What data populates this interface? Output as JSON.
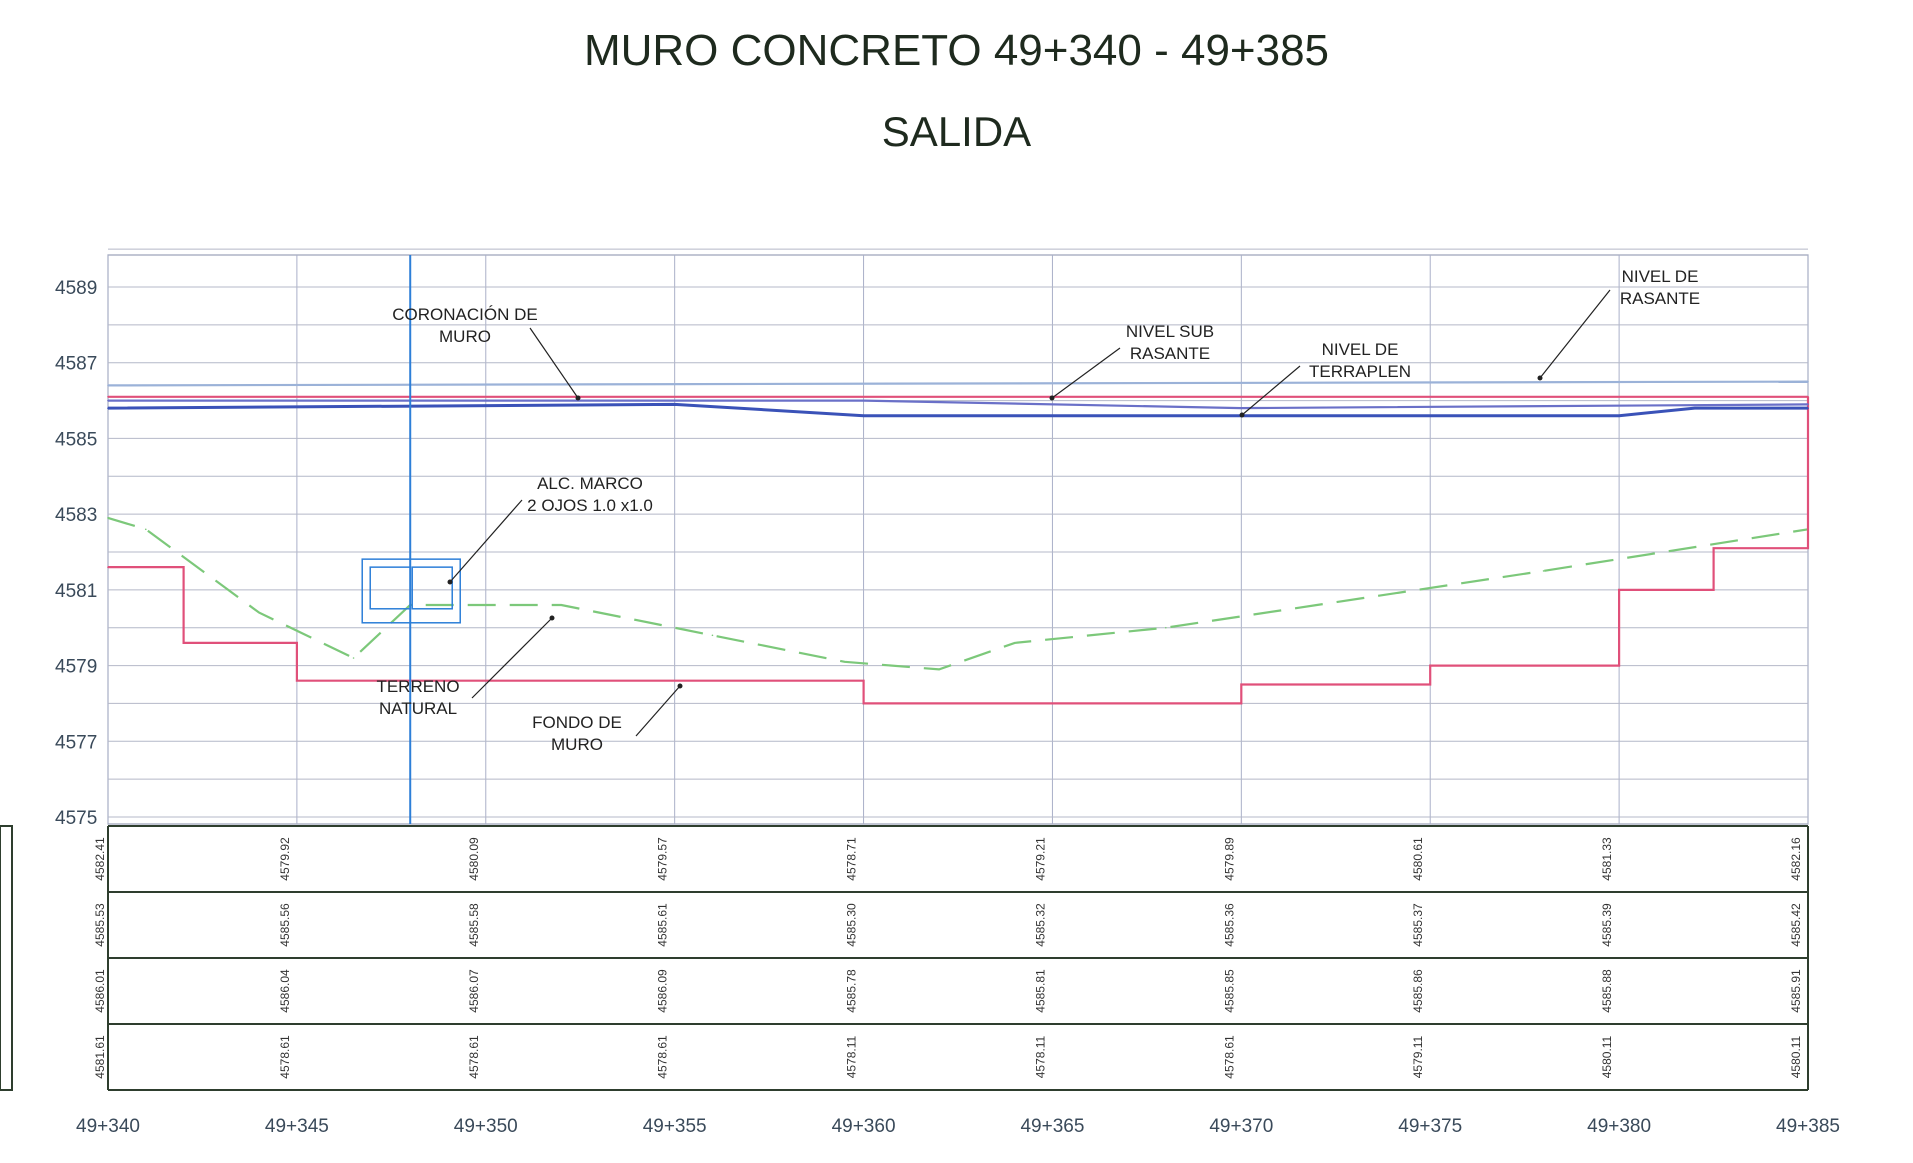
{
  "chart_data": {
    "type": "line",
    "title": "MURO CONCRETO 49+340 - 49+385",
    "subtitle": "SALIDA",
    "x_ticks": [
      "49+340",
      "49+345",
      "49+350",
      "49+355",
      "49+360",
      "49+365",
      "49+370",
      "49+375",
      "49+380",
      "49+385"
    ],
    "y_ticks": [
      4589,
      4587,
      4585,
      4583,
      4581,
      4579,
      4577,
      4575
    ],
    "xlim": [
      49340,
      49385
    ],
    "ylim": [
      4575,
      4590.5
    ],
    "grid": true,
    "annotations": [
      {
        "lines": [
          "CORONACIÓN DE",
          "MURO"
        ]
      },
      {
        "lines": [
          "NIVEL SUB",
          "RASANTE"
        ]
      },
      {
        "lines": [
          "NIVEL DE",
          "TERRAPLEN"
        ]
      },
      {
        "lines": [
          "NIVEL DE",
          "RASANTE"
        ]
      },
      {
        "lines": [
          "ALC. MARCO",
          "2 OJOS 1.0 x1.0"
        ]
      },
      {
        "lines": [
          "TERRENO",
          "NATURAL"
        ]
      },
      {
        "lines": [
          "FONDO DE",
          "MURO"
        ]
      }
    ],
    "series": [
      {
        "id": "terreno",
        "color": "#7cc87a",
        "dashed": true,
        "points": [
          [
            49340,
            4582.9
          ],
          [
            49341,
            4582.6
          ],
          [
            49344,
            4580.4
          ],
          [
            49346.5,
            4579.2
          ],
          [
            49348,
            4580.6
          ],
          [
            49352,
            4580.6
          ],
          [
            49356,
            4579.8
          ],
          [
            49359.5,
            4579.1
          ],
          [
            49362,
            4578.9
          ],
          [
            49364,
            4579.6
          ],
          [
            49368,
            4580.0
          ],
          [
            49372,
            4580.6
          ],
          [
            49378,
            4581.5
          ],
          [
            49385,
            4582.6
          ]
        ]
      },
      {
        "id": "fondo",
        "color": "#e0507a",
        "step": true,
        "points": [
          [
            49340,
            4581.6
          ],
          [
            49342,
            4581.6
          ],
          [
            49342,
            4579.6
          ],
          [
            49345,
            4579.6
          ],
          [
            49345,
            4578.6
          ],
          [
            49360,
            4578.6
          ],
          [
            49360,
            4578.0
          ],
          [
            49370,
            4578.0
          ],
          [
            49370,
            4578.5
          ],
          [
            49375,
            4578.5
          ],
          [
            49375,
            4579.0
          ],
          [
            49380,
            4579.0
          ],
          [
            49380,
            4581.0
          ],
          [
            49382.5,
            4581.0
          ],
          [
            49382.5,
            4582.1
          ],
          [
            49385,
            4582.1
          ],
          [
            49385,
            4586.1
          ]
        ]
      },
      {
        "id": "corona",
        "color": "#e0507a",
        "points": [
          [
            49340,
            4586.1
          ],
          [
            49360,
            4586.1
          ],
          [
            49385,
            4586.1
          ]
        ]
      },
      {
        "id": "subrasante",
        "color": "#3a52b8",
        "points": [
          [
            49340,
            4585.8
          ],
          [
            49355,
            4585.9
          ],
          [
            49360,
            4585.6
          ],
          [
            49370,
            4585.6
          ],
          [
            49380,
            4585.6
          ],
          [
            49382,
            4585.8
          ],
          [
            49385,
            4585.8
          ]
        ]
      },
      {
        "id": "terraplen",
        "color": "#6a70c8",
        "points": [
          [
            49340,
            4586.0
          ],
          [
            49360,
            4586.0
          ],
          [
            49370,
            4585.8
          ],
          [
            49385,
            4585.9
          ]
        ]
      },
      {
        "id": "rasante",
        "color": "#9bb2d8",
        "points": [
          [
            49340,
            4586.4
          ],
          [
            49385,
            4586.5
          ]
        ]
      }
    ],
    "culvert": {
      "station": 49348,
      "elev_bottom": 4580.5,
      "elev_top": 4581.6
    },
    "table": {
      "rows": [
        [
          "4582.41",
          "4579.92",
          "4580.09",
          "4579.57",
          "4578.71",
          "4579.21",
          "4579.89",
          "4580.61",
          "4581.33",
          "4582.16"
        ],
        [
          "4585.53",
          "4585.56",
          "4585.58",
          "4585.61",
          "4585.30",
          "4585.32",
          "4585.36",
          "4585.37",
          "4585.39",
          "4585.42"
        ],
        [
          "4586.01",
          "4586.04",
          "4586.07",
          "4586.09",
          "4585.78",
          "4585.81",
          "4585.85",
          "4585.86",
          "4585.88",
          "4585.91"
        ],
        [
          "4581.61",
          "4578.61",
          "4578.61",
          "4578.61",
          "4578.11",
          "4578.11",
          "4578.61",
          "4579.11",
          "4580.11",
          "4580.11"
        ]
      ]
    }
  }
}
